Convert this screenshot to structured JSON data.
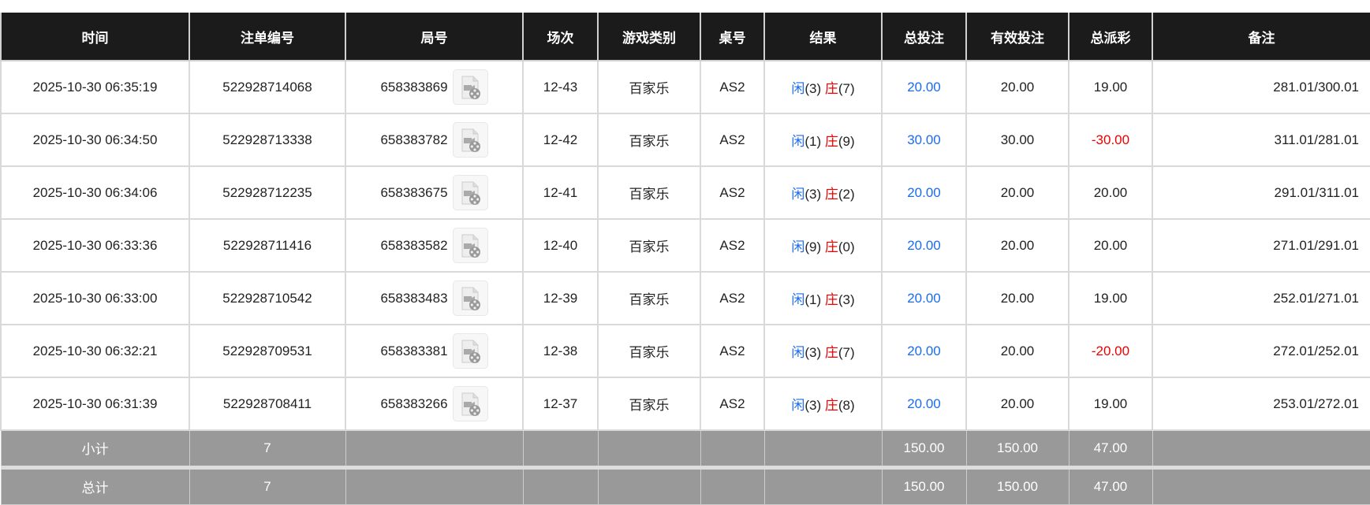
{
  "headers": [
    "时间",
    "注单编号",
    "局号",
    "场次",
    "游戏类别",
    "桌号",
    "结果",
    "总投注",
    "有效投注",
    "总派彩",
    "备注"
  ],
  "rows": [
    {
      "time": "2025-10-30 06:35:19",
      "bet_id": "522928714068",
      "round": "658383869",
      "session": "12-43",
      "game": "百家乐",
      "table": "AS2",
      "player_label": "闲",
      "player": "(3)",
      "banker_label": "庄",
      "banker": "(7)",
      "total_bet": "20.00",
      "valid_bet": "20.00",
      "payout": "19.00",
      "payout_negative": false,
      "note": "281.01/300.01"
    },
    {
      "time": "2025-10-30 06:34:50",
      "bet_id": "522928713338",
      "round": "658383782",
      "session": "12-42",
      "game": "百家乐",
      "table": "AS2",
      "player_label": "闲",
      "player": "(1)",
      "banker_label": "庄",
      "banker": "(9)",
      "total_bet": "30.00",
      "valid_bet": "30.00",
      "payout": "-30.00",
      "payout_negative": true,
      "note": "311.01/281.01"
    },
    {
      "time": "2025-10-30 06:34:06",
      "bet_id": "522928712235",
      "round": "658383675",
      "session": "12-41",
      "game": "百家乐",
      "table": "AS2",
      "player_label": "闲",
      "player": "(3)",
      "banker_label": "庄",
      "banker": "(2)",
      "total_bet": "20.00",
      "valid_bet": "20.00",
      "payout": "20.00",
      "payout_negative": false,
      "note": "291.01/311.01"
    },
    {
      "time": "2025-10-30 06:33:36",
      "bet_id": "522928711416",
      "round": "658383582",
      "session": "12-40",
      "game": "百家乐",
      "table": "AS2",
      "player_label": "闲",
      "player": "(9)",
      "banker_label": "庄",
      "banker": "(0)",
      "total_bet": "20.00",
      "valid_bet": "20.00",
      "payout": "20.00",
      "payout_negative": false,
      "note": "271.01/291.01"
    },
    {
      "time": "2025-10-30 06:33:00",
      "bet_id": "522928710542",
      "round": "658383483",
      "session": "12-39",
      "game": "百家乐",
      "table": "AS2",
      "player_label": "闲",
      "player": "(1)",
      "banker_label": "庄",
      "banker": "(3)",
      "total_bet": "20.00",
      "valid_bet": "20.00",
      "payout": "19.00",
      "payout_negative": false,
      "note": "252.01/271.01"
    },
    {
      "time": "2025-10-30 06:32:21",
      "bet_id": "522928709531",
      "round": "658383381",
      "session": "12-38",
      "game": "百家乐",
      "table": "AS2",
      "player_label": "闲",
      "player": "(3)",
      "banker_label": "庄",
      "banker": "(7)",
      "total_bet": "20.00",
      "valid_bet": "20.00",
      "payout": "-20.00",
      "payout_negative": true,
      "note": "272.01/252.01"
    },
    {
      "time": "2025-10-30 06:31:39",
      "bet_id": "522928708411",
      "round": "658383266",
      "session": "12-37",
      "game": "百家乐",
      "table": "AS2",
      "player_label": "闲",
      "player": "(3)",
      "banker_label": "庄",
      "banker": "(8)",
      "total_bet": "20.00",
      "valid_bet": "20.00",
      "payout": "19.00",
      "payout_negative": false,
      "note": "253.01/272.01"
    }
  ],
  "subtotal": {
    "label": "小计",
    "count": "7",
    "total_bet": "150.00",
    "valid_bet": "150.00",
    "payout": "47.00"
  },
  "total": {
    "label": "总计",
    "count": "7",
    "total_bet": "150.00",
    "valid_bet": "150.00",
    "payout": "47.00"
  },
  "icons": {
    "replay": "video-replay-icon"
  },
  "colors": {
    "header_bg": "#1b1b1b",
    "player": "#1a6cf0",
    "banker": "#e00000",
    "negative": "#e00000",
    "summary_bg": "#999999"
  }
}
